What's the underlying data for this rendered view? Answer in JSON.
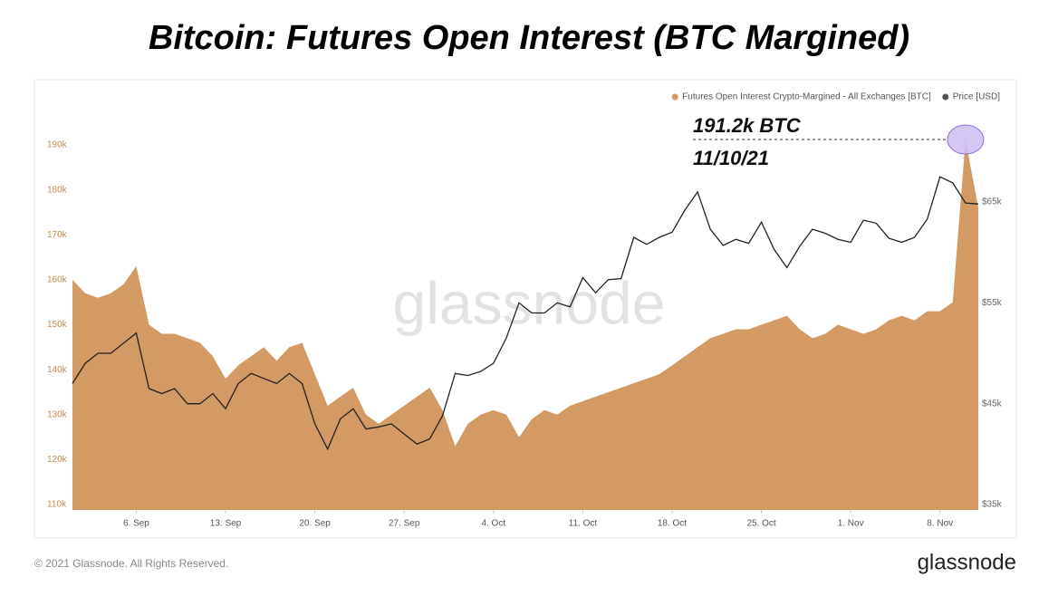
{
  "title": "Bitcoin: Futures Open Interest (BTC Margined)",
  "footer": "© 2021 Glassnode. All Rights Reserved.",
  "brand": "glassnode",
  "watermark": "glassnode",
  "chart_data": {
    "type": "area-line",
    "x": [
      "1. Sep",
      "2. Sep",
      "3. Sep",
      "4. Sep",
      "5. Sep",
      "6. Sep",
      "7. Sep",
      "8. Sep",
      "9. Sep",
      "10. Sep",
      "11. Sep",
      "12. Sep",
      "13. Sep",
      "14. Sep",
      "15. Sep",
      "16. Sep",
      "17. Sep",
      "18. Sep",
      "19. Sep",
      "20. Sep",
      "21. Sep",
      "22. Sep",
      "23. Sep",
      "24. Sep",
      "25. Sep",
      "26. Sep",
      "27. Sep",
      "28. Sep",
      "29. Sep",
      "30. Sep",
      "1. Oct",
      "2. Oct",
      "3. Oct",
      "4. Oct",
      "5. Oct",
      "6. Oct",
      "7. Oct",
      "8. Oct",
      "9. Oct",
      "10. Oct",
      "11. Oct",
      "12. Oct",
      "13. Oct",
      "14. Oct",
      "15. Oct",
      "16. Oct",
      "17. Oct",
      "18. Oct",
      "19. Oct",
      "20. Oct",
      "21. Oct",
      "22. Oct",
      "23. Oct",
      "24. Oct",
      "25. Oct",
      "26. Oct",
      "27. Oct",
      "28. Oct",
      "29. Oct",
      "30. Oct",
      "31. Oct",
      "1. Nov",
      "2. Nov",
      "3. Nov",
      "4. Nov",
      "5. Nov",
      "6. Nov",
      "7. Nov",
      "8. Nov",
      "9. Nov",
      "10. Nov",
      "11. Nov"
    ],
    "xticks": [
      "6. Sep",
      "13. Sep",
      "20. Sep",
      "27. Sep",
      "4. Oct",
      "11. Oct",
      "18. Oct",
      "25. Oct",
      "1. Nov",
      "8. Nov"
    ],
    "series": [
      {
        "name": "Futures Open Interest Crypto-Margined - All Exchanges [BTC]",
        "color": "#d39a63",
        "kind": "area",
        "values": [
          160000,
          157000,
          156000,
          157000,
          159000,
          163000,
          150000,
          148000,
          148000,
          147000,
          146000,
          143000,
          138000,
          141000,
          143000,
          145000,
          142000,
          145000,
          146000,
          139000,
          132000,
          134000,
          136000,
          130000,
          128000,
          130000,
          132000,
          134000,
          136000,
          131000,
          123000,
          128000,
          130000,
          131000,
          130000,
          125000,
          129000,
          131000,
          130000,
          132000,
          133000,
          134000,
          135000,
          136000,
          137000,
          138000,
          139000,
          141000,
          143000,
          145000,
          147000,
          148000,
          149000,
          149000,
          150000,
          151000,
          152000,
          149000,
          147000,
          148000,
          150000,
          149000,
          148000,
          149000,
          151000,
          152000,
          151000,
          153000,
          153000,
          155000,
          191200,
          176000
        ]
      },
      {
        "name": "Price [USD]",
        "color": "#555555",
        "line_color": "#222222",
        "kind": "line",
        "axis": "y2",
        "values": [
          47000,
          49000,
          50000,
          50000,
          51000,
          52000,
          46500,
          46000,
          46500,
          45000,
          45000,
          46000,
          44500,
          47000,
          48000,
          47500,
          47000,
          48000,
          47000,
          43000,
          40500,
          43500,
          44500,
          42500,
          42700,
          43000,
          42000,
          41000,
          41500,
          43800,
          48000,
          47800,
          48200,
          49000,
          51500,
          55000,
          54000,
          54000,
          55000,
          54600,
          57500,
          56000,
          57300,
          57400,
          61500,
          60800,
          61500,
          62000,
          64200,
          66000,
          62300,
          60700,
          61300,
          60900,
          63000,
          60300,
          58500,
          60600,
          62300,
          61900,
          61300,
          61000,
          63200,
          62900,
          61400,
          61000,
          61500,
          63300,
          67500,
          66900,
          64900,
          64800
        ]
      }
    ],
    "ylim": [
      108800,
      203100
    ],
    "yticks": [
      {
        "value": 110000,
        "label": "110k"
      },
      {
        "value": 120000,
        "label": "120k"
      },
      {
        "value": 130000,
        "label": "130k"
      },
      {
        "value": 140000,
        "label": "140k"
      },
      {
        "value": 150000,
        "label": "150k"
      },
      {
        "value": 160000,
        "label": "160k"
      },
      {
        "value": 170000,
        "label": "170k"
      },
      {
        "value": 180000,
        "label": "180k"
      },
      {
        "value": 190000,
        "label": "190k"
      }
    ],
    "y2lim": [
      34460,
      76500
    ],
    "y2ticks": [
      {
        "value": 35000,
        "label": "$35k"
      },
      {
        "value": 45000,
        "label": "$45k"
      },
      {
        "value": 55000,
        "label": "$55k"
      },
      {
        "value": 65000,
        "label": "$65k"
      }
    ],
    "annotation": {
      "point": 70,
      "lines": [
        "191.2k BTC",
        "11/10/21"
      ]
    }
  }
}
